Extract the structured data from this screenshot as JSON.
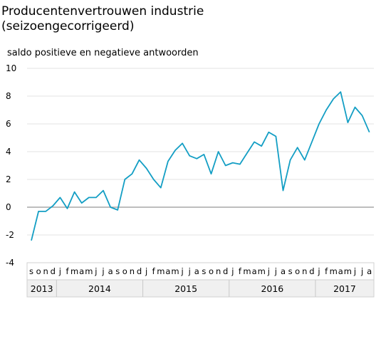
{
  "chart_data": {
    "type": "line",
    "title": "Producentenvertrouwen industrie\n(seizoengecorrigeerd)",
    "ylabel": "saldo positieve en negatieve antwoorden",
    "ylim": [
      -4,
      10
    ],
    "yticks": [
      -4,
      -2,
      0,
      2,
      4,
      6,
      8,
      10
    ],
    "grid": true,
    "color": "#139ec4",
    "month_labels": [
      "s",
      "o",
      "n",
      "d",
      "j",
      "f",
      "m",
      "a",
      "m",
      "j",
      "j",
      "a",
      "s",
      "o",
      "n",
      "d",
      "j",
      "f",
      "m",
      "a",
      "m",
      "j",
      "j",
      "a",
      "s",
      "o",
      "n",
      "d",
      "j",
      "f",
      "m",
      "a",
      "m",
      "j",
      "j",
      "a",
      "s",
      "o",
      "n",
      "d",
      "j",
      "f",
      "m",
      "a",
      "m",
      "j",
      "j",
      "a"
    ],
    "years": [
      {
        "label": "2013",
        "months": 4
      },
      {
        "label": "2014",
        "months": 12
      },
      {
        "label": "2015",
        "months": 12
      },
      {
        "label": "2016",
        "months": 12
      },
      {
        "label": "2017",
        "months": 8
      }
    ],
    "series": [
      {
        "values": [
          -2.4,
          -0.3,
          -0.3,
          0.1,
          0.7,
          -0.1,
          1.1,
          0.3,
          0.7,
          0.7,
          1.2,
          0.0,
          -0.2,
          2.0,
          2.4,
          3.4,
          2.8,
          2.0,
          1.4,
          3.3,
          4.1,
          4.6,
          3.7,
          3.5,
          3.8,
          2.4,
          4.0,
          3.0,
          3.2,
          3.1,
          3.9,
          4.7,
          4.4,
          5.4,
          5.1,
          1.2,
          3.4,
          4.3,
          3.4,
          4.7,
          6.0,
          7.0,
          7.8,
          8.3,
          6.1,
          7.2,
          6.6,
          5.4
        ]
      }
    ]
  }
}
